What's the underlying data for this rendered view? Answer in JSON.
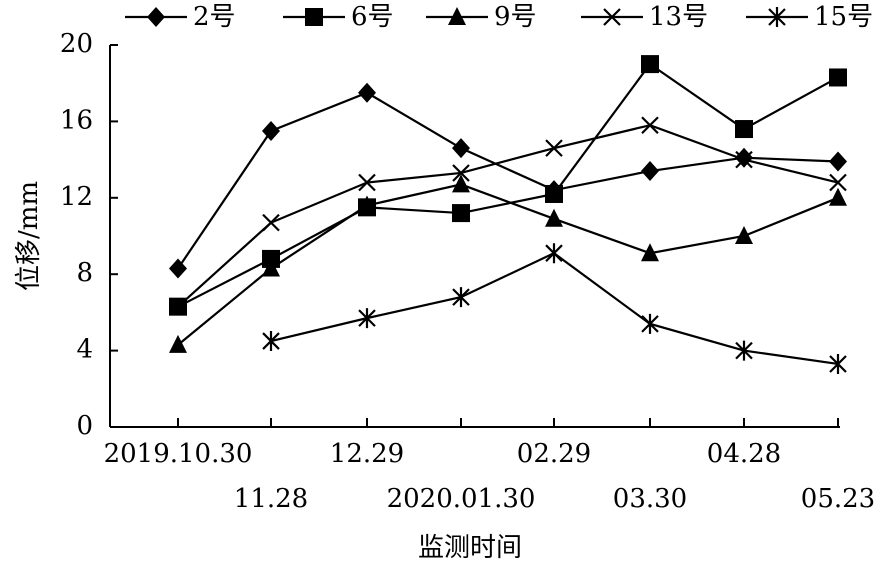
{
  "chart_data": {
    "type": "line",
    "xlabel": "监测时间",
    "ylabel": "位移/mm",
    "ylim": [
      0,
      20
    ],
    "yticks": [
      "0",
      "4",
      "8",
      "12",
      "16",
      "20"
    ],
    "categories": [
      "2019.10.30",
      "11.28",
      "12.29",
      "2020.01.30",
      "02.29",
      "03.30",
      "04.28",
      "05.23"
    ],
    "grid": false,
    "legend_position": "top",
    "series": [
      {
        "name": "2号",
        "marker": "diamond",
        "values": [
          8.3,
          15.5,
          17.5,
          14.6,
          12.4,
          13.4,
          14.1,
          13.9
        ]
      },
      {
        "name": "6号",
        "marker": "square",
        "values": [
          6.3,
          8.8,
          11.5,
          11.2,
          12.2,
          19.0,
          15.6,
          18.3
        ]
      },
      {
        "name": "9号",
        "marker": "triangle",
        "values": [
          4.3,
          8.3,
          11.6,
          12.7,
          10.9,
          9.1,
          10.0,
          12.0
        ]
      },
      {
        "name": "13号",
        "marker": "x",
        "values": [
          6.3,
          10.7,
          12.8,
          13.3,
          14.6,
          15.8,
          14.0,
          12.8
        ]
      },
      {
        "name": "15号",
        "marker": "asterisk",
        "values": [
          null,
          4.5,
          5.7,
          6.8,
          9.1,
          5.4,
          4.0,
          3.3
        ]
      }
    ]
  }
}
